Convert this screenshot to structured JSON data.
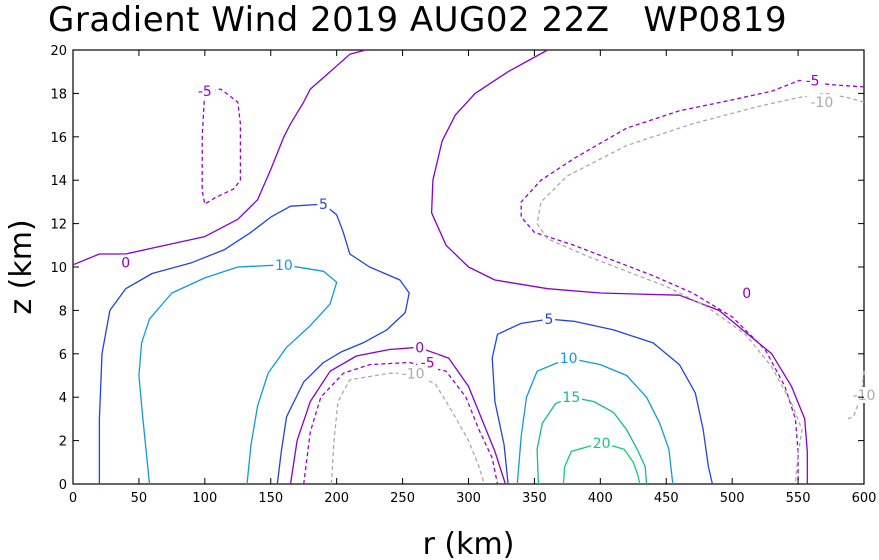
{
  "title": "Gradient Wind 2019 AUG02 22Z   WP0819",
  "chart_data": {
    "type": "contour",
    "title": "Gradient Wind 2019 AUG02 22Z   WP0819",
    "xlabel": "r (km)",
    "ylabel": "z (km)",
    "xlim": [
      0,
      600
    ],
    "ylim": [
      0,
      20
    ],
    "xticks": [
      0,
      50,
      100,
      150,
      200,
      250,
      300,
      350,
      400,
      450,
      500,
      550,
      600
    ],
    "yticks": [
      0,
      2,
      4,
      6,
      8,
      10,
      12,
      14,
      16,
      18,
      20
    ],
    "levels": [
      {
        "value": -10,
        "label": "-10",
        "color": "#aaaaaa",
        "dashed": true
      },
      {
        "value": -5,
        "label": "-5",
        "color": "#9900cc",
        "dashed": true
      },
      {
        "value": 0,
        "label": "0",
        "color": "#8800cc",
        "dashed": false
      },
      {
        "value": 5,
        "label": "5",
        "color": "#2244dd",
        "dashed": false
      },
      {
        "value": 10,
        "label": "10",
        "color": "#1199dd",
        "dashed": false
      },
      {
        "value": 15,
        "label": "15",
        "color": "#11bb99",
        "dashed": false
      },
      {
        "value": 20,
        "label": "20",
        "color": "#11cc77",
        "dashed": false
      }
    ],
    "contours": [
      {
        "level": 0,
        "label_at": [
          40,
          10.2
        ],
        "points": [
          [
            0,
            10.1
          ],
          [
            20,
            10.6
          ],
          [
            40,
            10.6
          ],
          [
            70,
            11.0
          ],
          [
            100,
            11.4
          ],
          [
            125,
            12.2
          ],
          [
            140,
            13.1
          ],
          [
            150,
            14.5
          ],
          [
            160,
            16.0
          ],
          [
            165,
            16.6
          ],
          [
            175,
            17.6
          ],
          [
            180,
            18.2
          ],
          [
            195,
            19.0
          ],
          [
            210,
            19.8
          ],
          [
            222,
            20
          ]
        ]
      },
      {
        "level": 0,
        "label_at": [
          511,
          8.8
        ],
        "points": [
          [
            360,
            20
          ],
          [
            330,
            19
          ],
          [
            305,
            18
          ],
          [
            290,
            17
          ],
          [
            280,
            15.8
          ],
          [
            273,
            14
          ],
          [
            272,
            12.5
          ],
          [
            283,
            11
          ],
          [
            300,
            10
          ],
          [
            320,
            9.4
          ],
          [
            360,
            9
          ],
          [
            400,
            8.8
          ],
          [
            460,
            8.7
          ],
          [
            490,
            8
          ],
          [
            510,
            7
          ],
          [
            530,
            6
          ],
          [
            545,
            4.5
          ],
          [
            555,
            3
          ],
          [
            557,
            1.5
          ],
          [
            557,
            0
          ]
        ]
      },
      {
        "level": 0,
        "label_at": [
          263,
          6.3
        ],
        "points": [
          [
            165,
            0
          ],
          [
            170,
            2
          ],
          [
            180,
            3.8
          ],
          [
            195,
            5.2
          ],
          [
            215,
            5.9
          ],
          [
            240,
            6.2
          ],
          [
            262,
            6.3
          ],
          [
            285,
            5.8
          ],
          [
            300,
            4.5
          ],
          [
            310,
            3
          ],
          [
            320,
            1.5
          ],
          [
            328,
            0
          ]
        ]
      },
      {
        "level": -5,
        "label_at": [
          100,
          18.1
        ],
        "points": [
          [
            100,
            18.1
          ],
          [
            112,
            18.2
          ],
          [
            125,
            17.6
          ],
          [
            127,
            16.6
          ],
          [
            127,
            14.0
          ],
          [
            122,
            13.6
          ],
          [
            108,
            13.2
          ],
          [
            100,
            12.9
          ],
          [
            98,
            13.5
          ],
          [
            98,
            16.0
          ],
          [
            100,
            18.1
          ]
        ]
      },
      {
        "level": -5,
        "label_at": [
          561,
          18.6
        ],
        "points": [
          [
            600,
            18.3
          ],
          [
            575,
            18.4
          ],
          [
            551,
            18.6
          ],
          [
            530,
            18.1
          ],
          [
            500,
            17.7
          ],
          [
            460,
            17.2
          ],
          [
            420,
            16.4
          ],
          [
            380,
            15.0
          ],
          [
            355,
            14.0
          ],
          [
            340,
            13.0
          ],
          [
            340,
            12.3
          ],
          [
            350,
            11.6
          ],
          [
            380,
            11.0
          ],
          [
            410,
            10.3
          ],
          [
            440,
            9.6
          ],
          [
            470,
            8.8
          ],
          [
            500,
            7.7
          ],
          [
            525,
            6.2
          ],
          [
            540,
            4.5
          ],
          [
            548,
            3.0
          ],
          [
            550,
            1.5
          ],
          [
            550,
            0
          ]
        ]
      },
      {
        "level": -5,
        "label_at": [
          269,
          5.6
        ],
        "points": [
          [
            175,
            0
          ],
          [
            180,
            2.4
          ],
          [
            188,
            4.0
          ],
          [
            205,
            5.1
          ],
          [
            225,
            5.5
          ],
          [
            255,
            5.6
          ],
          [
            283,
            5.2
          ],
          [
            298,
            4.0
          ],
          [
            308,
            2.5
          ],
          [
            318,
            1.2
          ],
          [
            322,
            0
          ]
        ]
      },
      {
        "level": -10,
        "label_at": [
          568,
          17.6
        ],
        "points": [
          [
            600,
            17.6
          ],
          [
            588,
            17.8
          ],
          [
            571,
            18.0
          ],
          [
            550,
            17.8
          ],
          [
            520,
            17.4
          ],
          [
            470,
            16.6
          ],
          [
            420,
            15.6
          ],
          [
            375,
            14.2
          ],
          [
            355,
            13.0
          ],
          [
            352,
            12.0
          ],
          [
            360,
            11.3
          ],
          [
            390,
            10.5
          ],
          [
            420,
            9.8
          ],
          [
            450,
            9.1
          ],
          [
            480,
            8.2
          ],
          [
            510,
            6.9
          ],
          [
            530,
            5.4
          ],
          [
            546,
            3.6
          ],
          [
            553,
            2.5
          ],
          [
            550,
            1.4
          ],
          [
            548,
            0
          ]
        ]
      },
      {
        "level": -10,
        "label_at": [
          258,
          5.1
        ],
        "points": [
          [
            196,
            0
          ],
          [
            198,
            2
          ],
          [
            201,
            3.8
          ],
          [
            210,
            4.8
          ],
          [
            240,
            5.1
          ],
          [
            258,
            5.1
          ],
          [
            275,
            4.6
          ],
          [
            288,
            3.3
          ],
          [
            300,
            2.0
          ],
          [
            308,
            0.8
          ],
          [
            312,
            0
          ]
        ]
      },
      {
        "level": -10,
        "label_at": [
          600,
          4.1
        ],
        "points": [
          [
            600,
            5.2
          ],
          [
            598,
            4.1
          ],
          [
            592,
            3.1
          ],
          [
            588,
            3.0
          ]
        ]
      },
      {
        "level": 5,
        "label_at": [
          190,
          12.9
        ],
        "points": [
          [
            20,
            0
          ],
          [
            20,
            3
          ],
          [
            22,
            6
          ],
          [
            28,
            8
          ],
          [
            40,
            9
          ],
          [
            60,
            9.7
          ],
          [
            90,
            10.2
          ],
          [
            115,
            10.8
          ],
          [
            135,
            11.6
          ],
          [
            150,
            12.3
          ],
          [
            165,
            12.8
          ],
          [
            190,
            12.9
          ],
          [
            200,
            12.4
          ],
          [
            205,
            11.6
          ],
          [
            210,
            10.6
          ],
          [
            225,
            10.0
          ],
          [
            248,
            9.4
          ],
          [
            255,
            8.8
          ],
          [
            252,
            7.9
          ],
          [
            238,
            7.1
          ],
          [
            220,
            6.5
          ],
          [
            204,
            6.1
          ],
          [
            190,
            5.6
          ],
          [
            175,
            4.7
          ],
          [
            162,
            3.1
          ],
          [
            158,
            1.5
          ],
          [
            155,
            0
          ]
        ]
      },
      {
        "level": 5,
        "label_at": [
          361,
          7.6
        ],
        "points": [
          [
            330,
            0
          ],
          [
            327,
            1.8
          ],
          [
            320,
            3.8
          ],
          [
            318,
            5.8
          ],
          [
            322,
            6.9
          ],
          [
            340,
            7.4
          ],
          [
            361,
            7.6
          ],
          [
            380,
            7.5
          ],
          [
            410,
            7.1
          ],
          [
            440,
            6.5
          ],
          [
            460,
            5.5
          ],
          [
            472,
            4.2
          ],
          [
            478,
            2.5
          ],
          [
            482,
            0.8
          ],
          [
            485,
            0
          ]
        ]
      },
      {
        "level": 10,
        "label_at": [
          160,
          10.1
        ],
        "points": [
          [
            58,
            0
          ],
          [
            53,
            3.0
          ],
          [
            50,
            5.0
          ],
          [
            52,
            6.5
          ],
          [
            58,
            7.6
          ],
          [
            75,
            8.8
          ],
          [
            100,
            9.5
          ],
          [
            125,
            10.0
          ],
          [
            160,
            10.1
          ],
          [
            190,
            9.8
          ],
          [
            200,
            9.3
          ],
          [
            195,
            8.3
          ],
          [
            180,
            7.3
          ],
          [
            162,
            6.3
          ],
          [
            148,
            5.1
          ],
          [
            140,
            3.6
          ],
          [
            135,
            1.8
          ],
          [
            132,
            0
          ]
        ]
      },
      {
        "level": 10,
        "label_at": [
          376,
          5.8
        ],
        "points": [
          [
            337,
            0
          ],
          [
            340,
            2.2
          ],
          [
            344,
            4.0
          ],
          [
            352,
            5.2
          ],
          [
            376,
            5.8
          ],
          [
            400,
            5.5
          ],
          [
            420,
            5.0
          ],
          [
            435,
            4.0
          ],
          [
            445,
            2.8
          ],
          [
            452,
            1.6
          ],
          [
            455,
            0
          ]
        ]
      },
      {
        "level": 15,
        "label_at": [
          378,
          4.0
        ],
        "points": [
          [
            353,
            0
          ],
          [
            352,
            1.6
          ],
          [
            356,
            2.8
          ],
          [
            366,
            3.7
          ],
          [
            378,
            4.0
          ],
          [
            395,
            3.8
          ],
          [
            410,
            3.3
          ],
          [
            420,
            2.5
          ],
          [
            428,
            1.6
          ],
          [
            434,
            0.8
          ],
          [
            435,
            0
          ]
        ]
      },
      {
        "level": 20,
        "label_at": [
          401,
          1.9
        ],
        "points": [
          [
            372,
            0
          ],
          [
            373,
            0.8
          ],
          [
            378,
            1.5
          ],
          [
            401,
            1.9
          ],
          [
            418,
            1.6
          ],
          [
            425,
            1.0
          ],
          [
            428,
            0.5
          ],
          [
            430,
            0
          ]
        ]
      }
    ]
  }
}
